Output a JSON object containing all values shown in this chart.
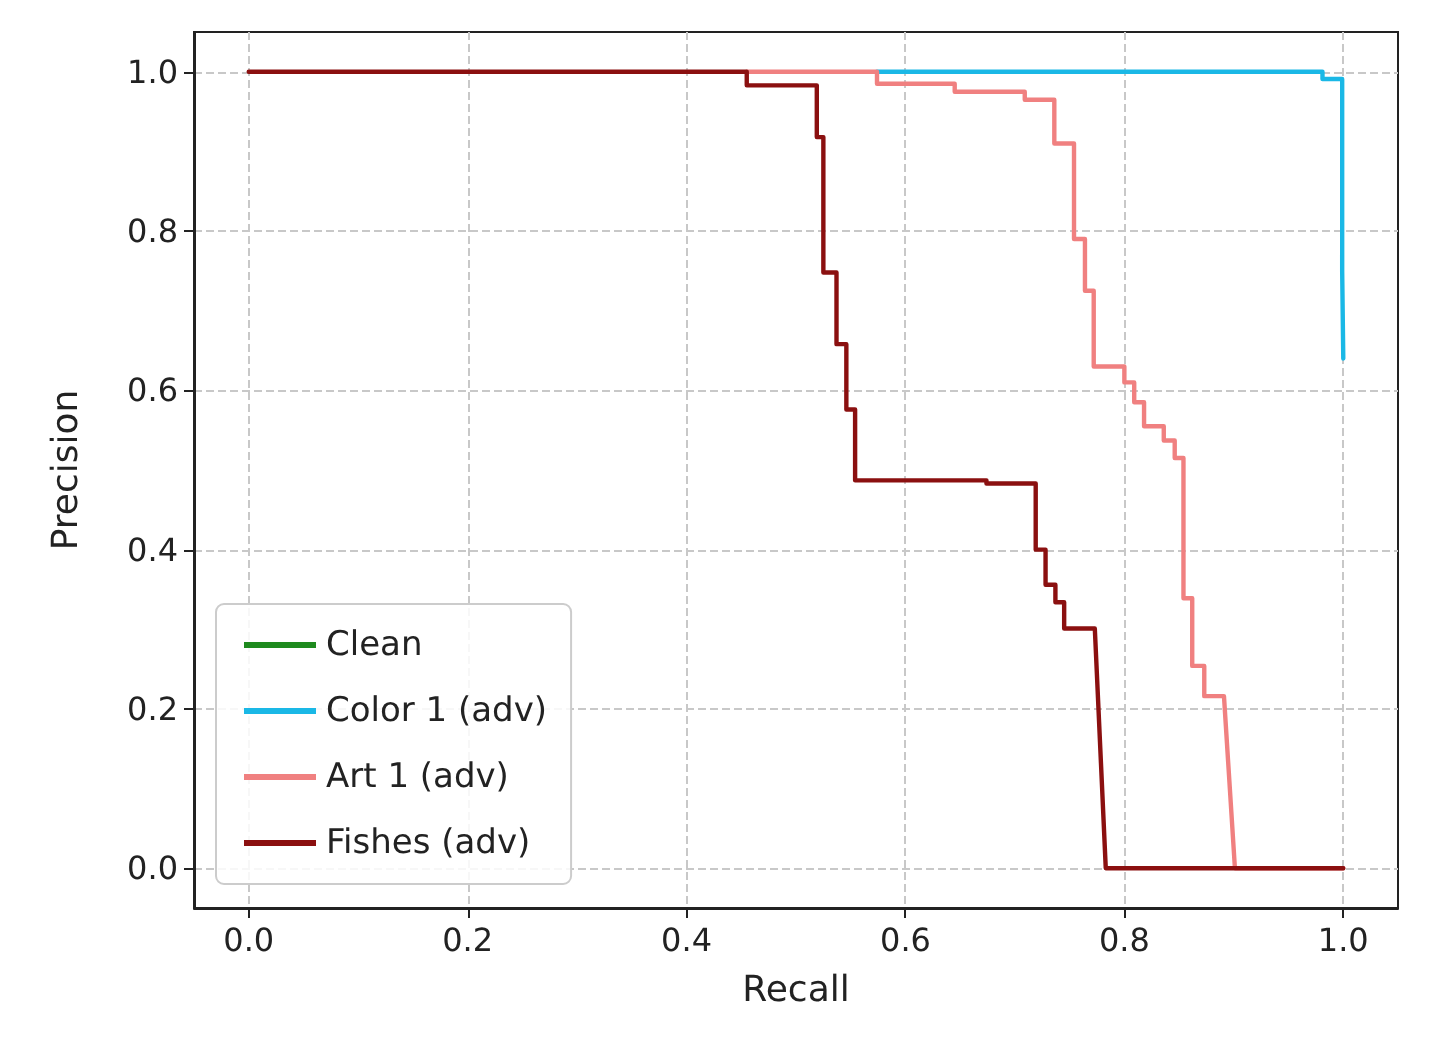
{
  "chart_data": {
    "type": "line",
    "xlabel": "Recall",
    "ylabel": "Precision",
    "xlim": [
      -0.05,
      1.05
    ],
    "ylim": [
      -0.05,
      1.05
    ],
    "xticks": [
      {
        "value": 0,
        "label": "0.0"
      },
      {
        "value": 0.2,
        "label": "0.2"
      },
      {
        "value": 0.4,
        "label": "0.4"
      },
      {
        "value": 0.6,
        "label": "0.6"
      },
      {
        "value": 0.8,
        "label": "0.8"
      },
      {
        "value": 1,
        "label": "1.0"
      }
    ],
    "yticks": [
      {
        "value": 0,
        "label": "0.0"
      },
      {
        "value": 0.2,
        "label": "0.2"
      },
      {
        "value": 0.4,
        "label": "0.4"
      },
      {
        "value": 0.6,
        "label": "0.6"
      },
      {
        "value": 0.8,
        "label": "0.8"
      },
      {
        "value": 1,
        "label": "1.0"
      }
    ],
    "grid": true,
    "legend": "bottom left",
    "marker": "none",
    "line_style": "solid",
    "series": [
      {
        "name": "Clean",
        "color": "#1e8a1e"
      },
      {
        "name": "Color 1 (adv)",
        "color": "#1ab8e6",
        "x": [
          0.574,
          0.981,
          0.981,
          0.999,
          0.999,
          1.0,
          1.0
        ],
        "values": [
          1,
          1,
          0.991,
          0.991,
          0.75,
          0.75,
          0.64
        ]
      },
      {
        "name": "Art 1 (adv)",
        "color": "#f08080",
        "x": [
          0.455,
          0.574,
          0.574,
          0.645,
          0.645,
          0.709,
          0.709,
          0.736,
          0.736,
          0.754,
          0.754,
          0.764,
          0.764,
          0.772,
          0.772,
          0.8,
          0.8,
          0.809,
          0.809,
          0.818,
          0.818,
          0.836,
          0.836,
          0.846,
          0.846,
          0.854,
          0.854,
          0.862,
          0.862,
          0.873,
          0.873,
          0.891,
          0.901,
          1.0
        ],
        "values": [
          1,
          1,
          0.985,
          0.985,
          0.975,
          0.975,
          0.965,
          0.965,
          0.91,
          0.91,
          0.79,
          0.79,
          0.725,
          0.725,
          0.63,
          0.63,
          0.61,
          0.61,
          0.585,
          0.585,
          0.555,
          0.555,
          0.537,
          0.537,
          0.515,
          0.515,
          0.339,
          0.339,
          0.254,
          0.254,
          0.216,
          0.216,
          0,
          0
        ]
      },
      {
        "name": "Fishes (adv)",
        "color": "#8b1010",
        "x": [
          0,
          0.455,
          0.455,
          0.519,
          0.519,
          0.525,
          0.525,
          0.537,
          0.537,
          0.546,
          0.546,
          0.554,
          0.554,
          0.674,
          0.674,
          0.719,
          0.719,
          0.728,
          0.728,
          0.737,
          0.737,
          0.745,
          0.745,
          0.773,
          0.783,
          1.0
        ],
        "values": [
          1,
          1,
          0.983,
          0.983,
          0.918,
          0.918,
          0.748,
          0.748,
          0.658,
          0.658,
          0.576,
          0.576,
          0.487,
          0.487,
          0.483,
          0.483,
          0.4,
          0.4,
          0.356,
          0.356,
          0.334,
          0.334,
          0.301,
          0.301,
          0,
          0
        ]
      }
    ]
  }
}
